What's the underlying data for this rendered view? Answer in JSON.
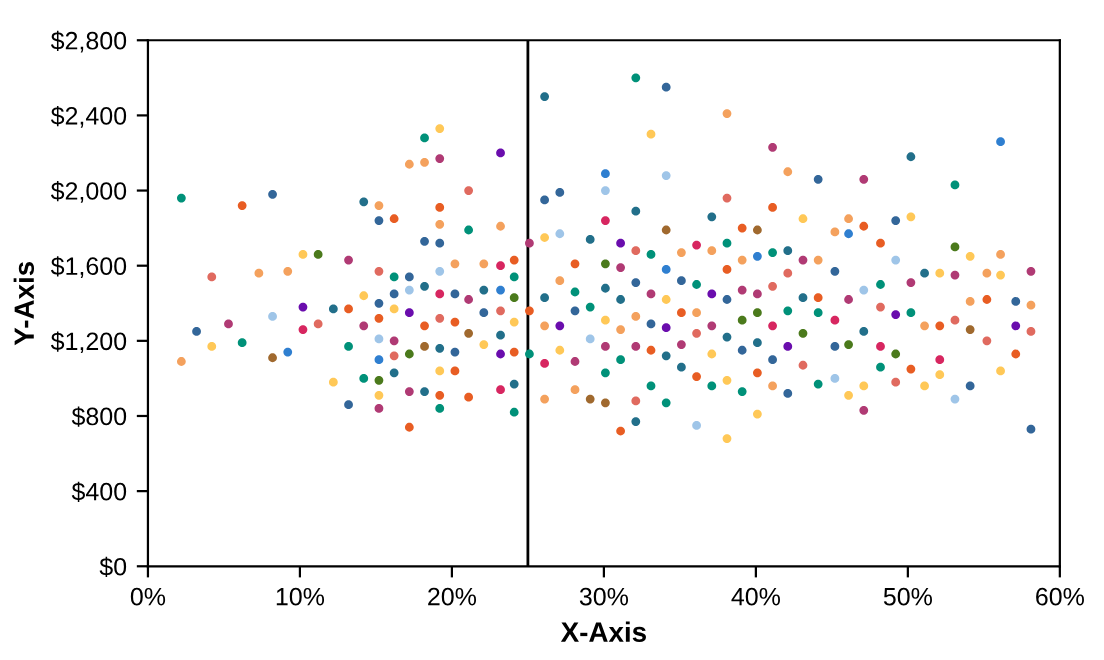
{
  "chart_data": {
    "type": "scatter",
    "xlabel": "X-Axis",
    "ylabel": "Y-Axis",
    "xlim": [
      0,
      60
    ],
    "ylim": [
      0,
      2800
    ],
    "xticks": [
      {
        "value": 0,
        "label": "0%"
      },
      {
        "value": 10,
        "label": "10%"
      },
      {
        "value": 20,
        "label": "20%"
      },
      {
        "value": 30,
        "label": "30%"
      },
      {
        "value": 40,
        "label": "40%"
      },
      {
        "value": 50,
        "label": "50%"
      },
      {
        "value": 60,
        "label": "60%"
      }
    ],
    "yticks": [
      {
        "value": 0,
        "label": "$0"
      },
      {
        "value": 400,
        "label": "$400"
      },
      {
        "value": 800,
        "label": "$800"
      },
      {
        "value": 1200,
        "label": "$1,200"
      },
      {
        "value": 1600,
        "label": "$1,600"
      },
      {
        "value": 2000,
        "label": "$2,000"
      },
      {
        "value": 2400,
        "label": "$2,400"
      },
      {
        "value": 2800,
        "label": "$2,800"
      }
    ],
    "grid": false,
    "legend": false,
    "marker": "circle",
    "ref_lines": [
      {
        "axis": "x",
        "value": 25,
        "color": "#000000",
        "line_style": "solid"
      }
    ],
    "x": [
      2.2,
      2.2,
      3.2,
      4.2,
      4.2,
      5.3,
      6.2,
      6.2,
      7.3,
      8.2,
      8.2,
      8.2,
      9.2,
      9.2,
      10.2,
      10.2,
      10.2,
      11.2,
      11.2,
      12.2,
      12.2,
      13.2,
      13.2,
      13.2,
      13.2,
      14.2,
      14.2,
      14.2,
      14.2,
      15.2,
      15.2,
      15.2,
      15.2,
      15.2,
      15.2,
      15.2,
      15.2,
      15.2,
      15.2,
      16.2,
      16.2,
      16.2,
      16.2,
      16.2,
      16.2,
      16.2,
      17.2,
      17.2,
      17.2,
      17.2,
      17.2,
      17.2,
      17.2,
      18.2,
      18.2,
      18.2,
      18.2,
      18.2,
      18.2,
      18.2,
      19.2,
      19.2,
      19.2,
      19.2,
      19.2,
      19.2,
      19.2,
      19.2,
      19.2,
      19.2,
      19.2,
      19.2,
      20.2,
      20.2,
      20.2,
      20.2,
      20.2,
      21.1,
      21.1,
      21.1,
      21.1,
      21.1,
      22.1,
      22.1,
      22.1,
      22.1,
      23.2,
      23.2,
      23.2,
      23.2,
      23.2,
      23.2,
      23.2,
      23.2,
      24.1,
      24.1,
      24.1,
      24.1,
      24.1,
      24.1,
      24.1,
      25.1,
      25.1,
      25.1,
      26.1,
      26.1,
      26.1,
      26.1,
      26.1,
      26.1,
      26.1,
      27.1,
      27.1,
      27.1,
      27.1,
      27.1,
      28.1,
      28.1,
      28.1,
      28.1,
      28.1,
      29.1,
      29.1,
      29.1,
      29.1,
      30.1,
      30.1,
      30.1,
      30.1,
      30.1,
      30.1,
      30.1,
      30.1,
      30.1,
      31.1,
      31.1,
      31.1,
      31.1,
      31.1,
      31.1,
      32.1,
      32.1,
      32.1,
      32.1,
      32.1,
      32.1,
      32.1,
      32.1,
      33.1,
      33.1,
      33.1,
      33.1,
      33.1,
      33.1,
      34.1,
      34.1,
      34.1,
      34.1,
      34.1,
      34.1,
      34.1,
      34.1,
      35.1,
      35.1,
      35.1,
      35.1,
      35.1,
      36.1,
      36.1,
      36.1,
      36.1,
      36.1,
      36.1,
      37.1,
      37.1,
      37.1,
      37.1,
      37.1,
      37.1,
      38.1,
      38.1,
      38.1,
      38.1,
      38.1,
      38.1,
      38.1,
      38.1,
      39.1,
      39.1,
      39.1,
      39.1,
      39.1,
      39.1,
      40.1,
      40.1,
      40.1,
      40.1,
      40.1,
      40.1,
      40.1,
      41.1,
      41.1,
      41.1,
      41.1,
      41.1,
      41.1,
      41.1,
      42.1,
      42.1,
      42.1,
      42.1,
      42.1,
      42.1,
      43.1,
      43.1,
      43.1,
      43.1,
      43.1,
      44.1,
      44.1,
      44.1,
      44.1,
      44.1,
      45.2,
      45.2,
      45.2,
      45.2,
      45.2,
      46.1,
      46.1,
      46.1,
      46.1,
      46.1,
      47.1,
      47.1,
      47.1,
      47.1,
      47.1,
      47.1,
      48.2,
      48.2,
      48.2,
      48.2,
      48.2,
      49.2,
      49.2,
      49.2,
      49.2,
      49.2,
      50.2,
      50.2,
      50.2,
      50.2,
      50.2,
      51.1,
      51.1,
      51.1,
      52.1,
      52.1,
      52.1,
      52.1,
      53.1,
      53.1,
      53.1,
      53.1,
      53.1,
      54.1,
      54.1,
      54.1,
      54.1,
      55.2,
      55.2,
      55.2,
      56.1,
      56.1,
      56.1,
      56.1,
      57.1,
      57.1,
      57.1,
      58.1,
      58.1,
      58.1,
      58.1
    ],
    "values": [
      1960,
      1090,
      1250,
      1540,
      1170,
      1290,
      1920,
      1190,
      1560,
      1980,
      1330,
      1110,
      1570,
      1140,
      1660,
      1380,
      1260,
      1660,
      1290,
      980,
      1370,
      1630,
      1370,
      1170,
      860,
      1940,
      1440,
      1280,
      1000,
      1920,
      1840,
      1570,
      1400,
      1320,
      1210,
      1100,
      990,
      910,
      840,
      1850,
      1540,
      1450,
      1370,
      1200,
      1120,
      1030,
      2140,
      1540,
      1470,
      1350,
      1130,
      930,
      740,
      2280,
      2150,
      1730,
      1490,
      1280,
      1170,
      930,
      2330,
      2170,
      1910,
      1820,
      1720,
      1570,
      1450,
      1320,
      1160,
      1040,
      910,
      840,
      1610,
      1450,
      1300,
      1140,
      1040,
      2000,
      1790,
      1420,
      1240,
      900,
      1610,
      1470,
      1350,
      1180,
      2200,
      1810,
      1600,
      1470,
      1360,
      1230,
      1130,
      940,
      1630,
      1540,
      1430,
      1300,
      1140,
      970,
      820,
      1720,
      1360,
      1130,
      2500,
      1950,
      1750,
      1430,
      1280,
      1080,
      890,
      1990,
      1770,
      1520,
      1280,
      1150,
      1610,
      1460,
      1360,
      1090,
      940,
      1740,
      1380,
      1210,
      890,
      2090,
      2000,
      1840,
      1610,
      1480,
      1310,
      1170,
      1030,
      870,
      1720,
      1590,
      1420,
      1260,
      1100,
      720,
      2600,
      1890,
      1680,
      1510,
      1330,
      1170,
      880,
      770,
      2300,
      1660,
      1450,
      1290,
      1150,
      960,
      2550,
      2080,
      1790,
      1580,
      1420,
      1270,
      1120,
      870,
      1670,
      1520,
      1350,
      1180,
      1060,
      1710,
      1500,
      1350,
      1240,
      1010,
      750,
      1860,
      1680,
      1450,
      1280,
      1130,
      960,
      2410,
      1960,
      1720,
      1580,
      1420,
      1220,
      990,
      680,
      1800,
      1630,
      1470,
      1310,
      1150,
      930,
      1790,
      1650,
      1450,
      1350,
      1190,
      1030,
      810,
      2230,
      1910,
      1670,
      1490,
      1280,
      1100,
      960,
      2100,
      1680,
      1560,
      1360,
      1170,
      920,
      1850,
      1630,
      1430,
      1240,
      1070,
      2060,
      1630,
      1430,
      1350,
      970,
      1780,
      1570,
      1310,
      1170,
      1000,
      1850,
      1770,
      1420,
      1180,
      910,
      2060,
      1810,
      1470,
      1250,
      960,
      830,
      1720,
      1500,
      1380,
      1170,
      1060,
      1840,
      1630,
      1340,
      1130,
      980,
      2180,
      1860,
      1510,
      1350,
      1050,
      1560,
      1280,
      960,
      1560,
      1280,
      1100,
      1020,
      2030,
      1700,
      1550,
      1310,
      890,
      1650,
      1410,
      1260,
      960,
      1560,
      1420,
      1200,
      2260,
      1660,
      1550,
      1040,
      1410,
      1280,
      1130,
      1570,
      1390,
      1250,
      730
    ],
    "colors": [
      "#009179",
      "#f4a15d",
      "#336699",
      "#e06a5f",
      "#ffc857",
      "#b03a74",
      "#e85d23",
      "#009179",
      "#f4a15d",
      "#336699",
      "#9fc5e8",
      "#a0692e",
      "#f4a15d",
      "#2f7fd0",
      "#ffc857",
      "#6a0dad",
      "#d72660",
      "#4b7a1c",
      "#e06a5f",
      "#ffc857",
      "#226f8a",
      "#b03a74",
      "#e85d23",
      "#009179",
      "#336699",
      "#226f8a",
      "#ffc857",
      "#b03a74",
      "#009179",
      "#f4a15d",
      "#336699",
      "#e06a5f",
      "#336699",
      "#e85d23",
      "#9fc5e8",
      "#2f7fd0",
      "#4b7a1c",
      "#ffc857",
      "#b03a74",
      "#e85d23",
      "#009179",
      "#336699",
      "#ffc857",
      "#b03a74",
      "#e06a5f",
      "#226f8a",
      "#f4a15d",
      "#336699",
      "#9fc5e8",
      "#6a0dad",
      "#4b7a1c",
      "#b03a74",
      "#e85d23",
      "#009179",
      "#f4a15d",
      "#336699",
      "#226f8a",
      "#e85d23",
      "#a0692e",
      "#226f8a",
      "#ffc857",
      "#b03a74",
      "#e85d23",
      "#f4a15d",
      "#336699",
      "#9fc5e8",
      "#d72660",
      "#e06a5f",
      "#226f8a",
      "#ffc857",
      "#e85d23",
      "#009179",
      "#f4a15d",
      "#336699",
      "#e85d23",
      "#336699",
      "#e85d23",
      "#e06a5f",
      "#009179",
      "#b03a74",
      "#a0692e",
      "#e85d23",
      "#f4a15d",
      "#226f8a",
      "#336699",
      "#ffc857",
      "#6a0dad",
      "#f4a15d",
      "#d72660",
      "#2f7fd0",
      "#e06a5f",
      "#226f8a",
      "#6a0dad",
      "#d72660",
      "#e85d23",
      "#009179",
      "#4b7a1c",
      "#ffc857",
      "#e85d23",
      "#226f8a",
      "#009179",
      "#b03a74",
      "#e85d23",
      "#009179",
      "#226f8a",
      "#336699",
      "#ffc857",
      "#226f8a",
      "#f4a15d",
      "#d72660",
      "#f4a15d",
      "#336699",
      "#9fc5e8",
      "#f4a15d",
      "#6a0dad",
      "#ffc857",
      "#e85d23",
      "#009179",
      "#336699",
      "#b03a74",
      "#f4a15d",
      "#226f8a",
      "#009179",
      "#9fc5e8",
      "#a0692e",
      "#2f7fd0",
      "#9fc5e8",
      "#d72660",
      "#4b7a1c",
      "#226f8a",
      "#ffc857",
      "#b03a74",
      "#009179",
      "#a0692e",
      "#6a0dad",
      "#b03a74",
      "#226f8a",
      "#f4a15d",
      "#009179",
      "#e85d23",
      "#009179",
      "#226f8a",
      "#e06a5f",
      "#336699",
      "#f4a15d",
      "#b03a74",
      "#e06a5f",
      "#226f8a",
      "#ffc857",
      "#009179",
      "#b03a74",
      "#336699",
      "#e85d23",
      "#009179",
      "#336699",
      "#9fc5e8",
      "#a0692e",
      "#2f7fd0",
      "#ffc857",
      "#6a0dad",
      "#226f8a",
      "#009179",
      "#f4a15d",
      "#336699",
      "#e85d23",
      "#b03a74",
      "#226f8a",
      "#d72660",
      "#009179",
      "#f4a15d",
      "#e06a5f",
      "#e85d23",
      "#9fc5e8",
      "#226f8a",
      "#f4a15d",
      "#6a0dad",
      "#b03a74",
      "#ffc857",
      "#009179",
      "#f4a15d",
      "#e06a5f",
      "#009179",
      "#e85d23",
      "#336699",
      "#226f8a",
      "#ffc857",
      "#ffc857",
      "#e85d23",
      "#f4a15d",
      "#b03a74",
      "#4b7a1c",
      "#336699",
      "#009179",
      "#a0692e",
      "#2f7fd0",
      "#b03a74",
      "#4b7a1c",
      "#226f8a",
      "#e85d23",
      "#ffc857",
      "#b03a74",
      "#e85d23",
      "#009179",
      "#e06a5f",
      "#d72660",
      "#336699",
      "#f4a15d",
      "#f4a15d",
      "#226f8a",
      "#e06a5f",
      "#009179",
      "#6a0dad",
      "#336699",
      "#ffc857",
      "#b03a74",
      "#226f8a",
      "#4b7a1c",
      "#e06a5f",
      "#336699",
      "#f4a15d",
      "#e85d23",
      "#009179",
      "#009179",
      "#f4a15d",
      "#336699",
      "#d72660",
      "#336699",
      "#9fc5e8",
      "#f4a15d",
      "#2f7fd0",
      "#b03a74",
      "#4b7a1c",
      "#ffc857",
      "#b03a74",
      "#e85d23",
      "#9fc5e8",
      "#226f8a",
      "#ffc857",
      "#b03a74",
      "#e85d23",
      "#009179",
      "#e06a5f",
      "#d72660",
      "#009179",
      "#336699",
      "#9fc5e8",
      "#6a0dad",
      "#4b7a1c",
      "#e06a5f",
      "#226f8a",
      "#ffc857",
      "#b03a74",
      "#009179",
      "#e85d23",
      "#226f8a",
      "#f4a15d",
      "#ffc857",
      "#ffc857",
      "#e85d23",
      "#d72660",
      "#ffc857",
      "#009179",
      "#4b7a1c",
      "#b03a74",
      "#e06a5f",
      "#9fc5e8",
      "#ffc857",
      "#f4a15d",
      "#a0692e",
      "#336699",
      "#f4a15d",
      "#e85d23",
      "#e06a5f",
      "#2f7fd0",
      "#f4a15d",
      "#ffc857",
      "#ffc857",
      "#336699",
      "#6a0dad",
      "#e85d23",
      "#b03a74",
      "#f4a15d",
      "#e06a5f",
      "#336699"
    ]
  }
}
